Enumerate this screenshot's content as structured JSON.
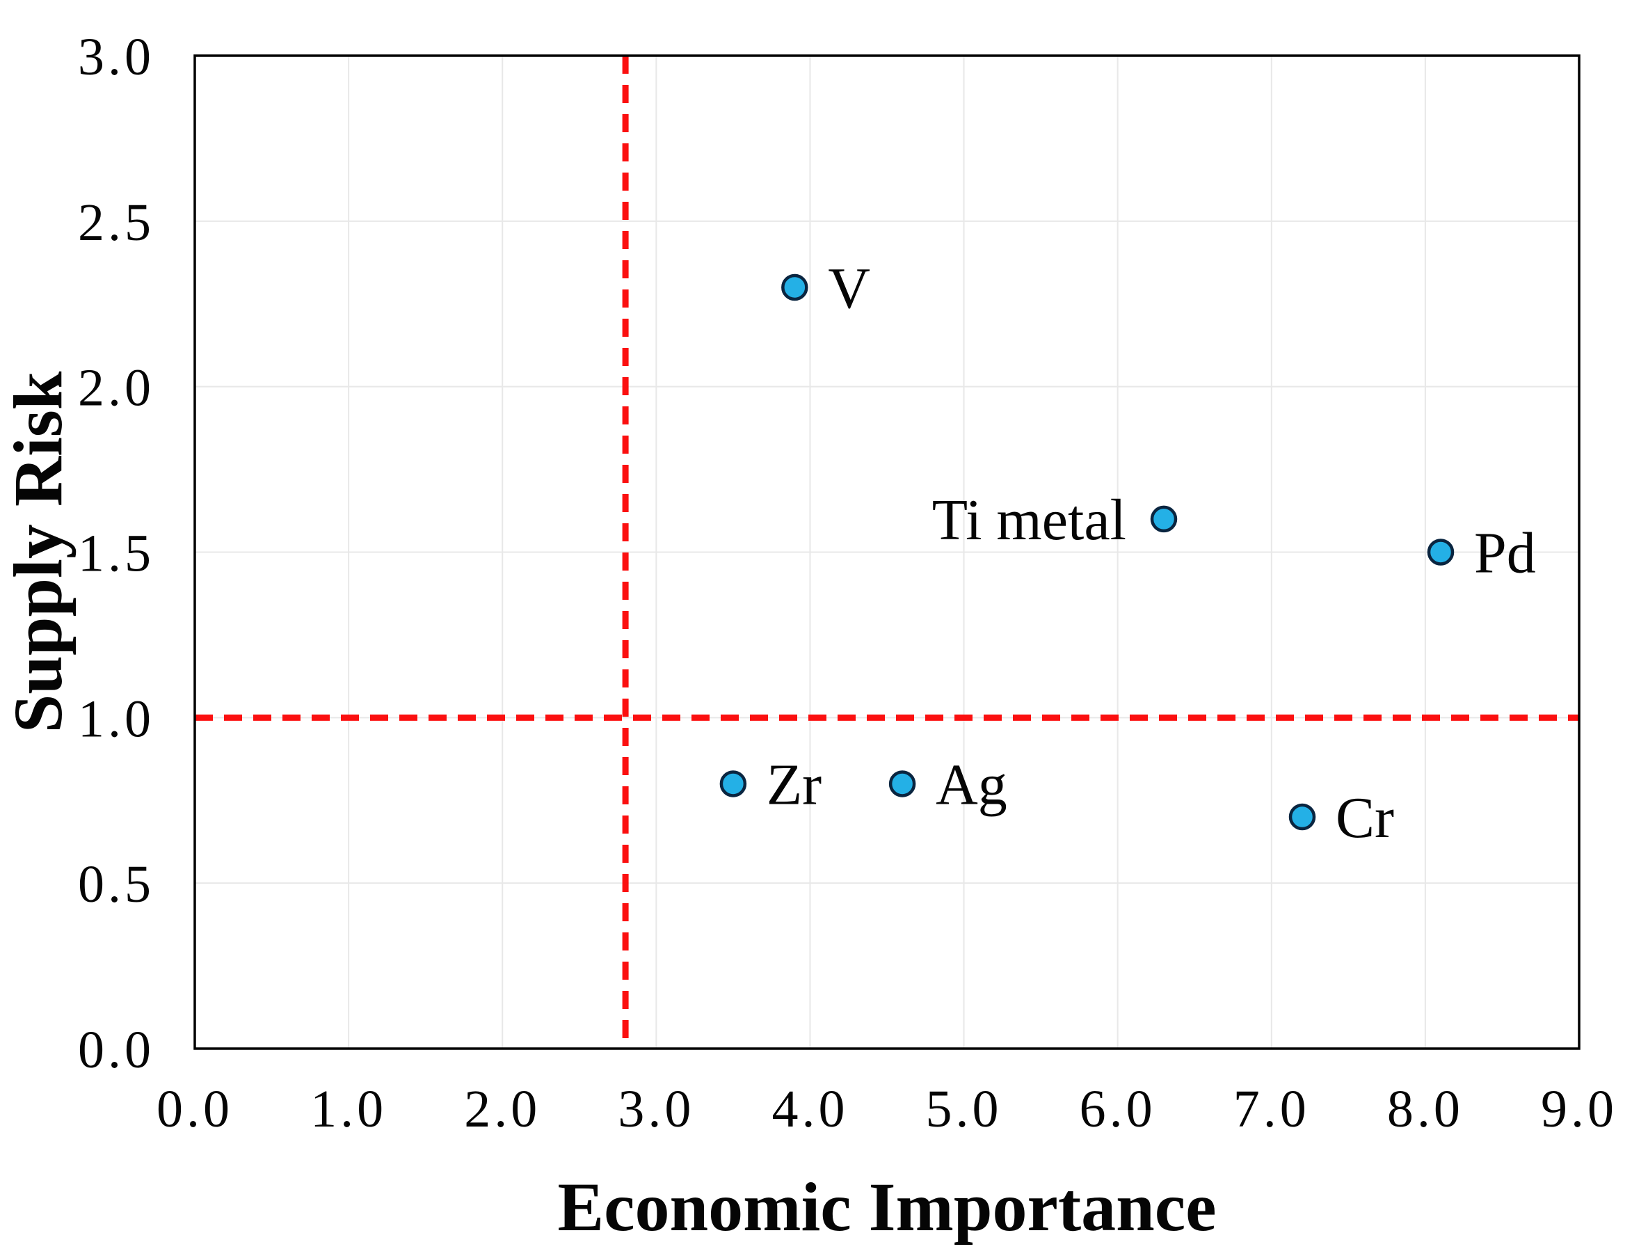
{
  "chart_data": {
    "type": "scatter",
    "title": "",
    "xlabel": "Economic Importance",
    "ylabel": "Supply Risk",
    "xlim": [
      0.0,
      9.0
    ],
    "ylim": [
      0.0,
      3.0
    ],
    "x_ticks": [
      {
        "value": 0.0,
        "label": "0.0"
      },
      {
        "value": 1.0,
        "label": "1.0"
      },
      {
        "value": 2.0,
        "label": "2.0"
      },
      {
        "value": 3.0,
        "label": "3.0"
      },
      {
        "value": 4.0,
        "label": "4.0"
      },
      {
        "value": 5.0,
        "label": "5.0"
      },
      {
        "value": 6.0,
        "label": "6.0"
      },
      {
        "value": 7.0,
        "label": "7.0"
      },
      {
        "value": 8.0,
        "label": "8.0"
      },
      {
        "value": 9.0,
        "label": "9.0"
      }
    ],
    "y_ticks": [
      {
        "value": 0.0,
        "label": "0.0"
      },
      {
        "value": 0.5,
        "label": "0.5"
      },
      {
        "value": 1.0,
        "label": "1.0"
      },
      {
        "value": 1.5,
        "label": "1.5"
      },
      {
        "value": 2.0,
        "label": "2.0"
      },
      {
        "value": 2.5,
        "label": "2.5"
      },
      {
        "value": 3.0,
        "label": "3.0"
      }
    ],
    "grid": true,
    "legend": "none",
    "points": [
      {
        "label": "V",
        "x": 3.9,
        "y": 2.3,
        "label_side": "right"
      },
      {
        "label": "Ti metal",
        "x": 6.3,
        "y": 1.6,
        "label_side": "left"
      },
      {
        "label": "Pd",
        "x": 8.1,
        "y": 1.5,
        "label_side": "right"
      },
      {
        "label": "Zr",
        "x": 3.5,
        "y": 0.8,
        "label_side": "right"
      },
      {
        "label": "Ag",
        "x": 4.6,
        "y": 0.8,
        "label_side": "right"
      },
      {
        "label": "Cr",
        "x": 7.2,
        "y": 0.7,
        "label_side": "right"
      }
    ],
    "reference_lines": [
      {
        "orientation": "vertical",
        "value": 2.8,
        "style": "dashed"
      },
      {
        "orientation": "horizontal",
        "value": 1.0,
        "style": "dashed"
      }
    ],
    "colors": {
      "marker_fill": "#24b0e6",
      "marker_stroke": "#0a2540",
      "grid": "#e8e8e8",
      "axis": "#000000",
      "reference": "#fb1010",
      "text": "#050505",
      "background": "#ffffff"
    }
  }
}
